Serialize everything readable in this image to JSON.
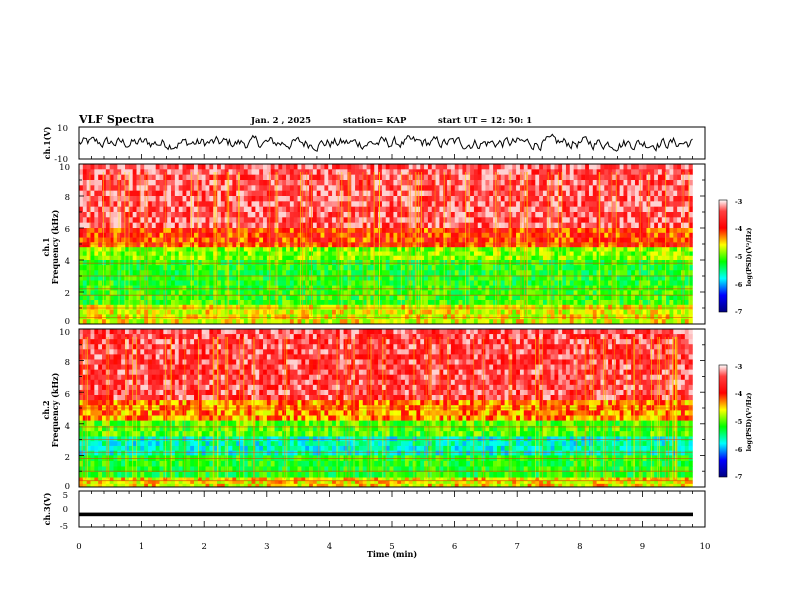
{
  "header": {
    "title": "VLF Spectra",
    "date": "Jan. 2 , 2025",
    "station": "station= KAP",
    "start_time": "start UT = 12: 50: 1"
  },
  "chart_data": [
    {
      "type": "line",
      "id": "ch1-waveform",
      "ylabel": "ch.1(V)",
      "ylim": [
        -10,
        10
      ],
      "yticks": [
        "10",
        "-10"
      ],
      "xlim": [
        0,
        10
      ],
      "note": "dense noisy voltage trace, mostly between -4 and 4 V"
    },
    {
      "type": "heatmap",
      "id": "ch1-spectrogram",
      "ylabel_line1": "ch.1",
      "ylabel_line2": "Frequency (kHz)",
      "ylim": [
        0,
        10
      ],
      "yticks": [
        "0",
        "2",
        "4",
        "6",
        "8",
        "10"
      ],
      "xlim": [
        0,
        9.8
      ],
      "colorbar": {
        "label": "log(PSD)(V²/Hz)",
        "range": [
          -7,
          -3
        ],
        "ticks": [
          "-3",
          "-4",
          "-5",
          "-6",
          "-7"
        ]
      },
      "bands": [
        {
          "f_low": 6.0,
          "f_high": 10.0,
          "log_psd": -3.1
        },
        {
          "f_low": 4.8,
          "f_high": 6.0,
          "log_psd": -3.7
        },
        {
          "f_low": 4.0,
          "f_high": 4.8,
          "log_psd": -4.6
        },
        {
          "f_low": 2.4,
          "f_high": 4.0,
          "log_psd": -5.0
        },
        {
          "f_low": 1.2,
          "f_high": 2.4,
          "log_psd": -4.9
        },
        {
          "f_low": 0.0,
          "f_high": 1.2,
          "log_psd": -4.3
        }
      ]
    },
    {
      "type": "heatmap",
      "id": "ch2-spectrogram",
      "ylabel_line1": "ch.2",
      "ylabel_line2": "Frequency (kHz)",
      "ylim": [
        0,
        10
      ],
      "yticks": [
        "0",
        "2",
        "4",
        "6",
        "8",
        "10"
      ],
      "xlim": [
        0,
        9.8
      ],
      "colorbar": {
        "label": "log(PSD)(V²/Hz)",
        "range": [
          -7,
          -3
        ],
        "ticks": [
          "-3",
          "-4",
          "-5",
          "-6",
          "-7"
        ]
      },
      "bands": [
        {
          "f_low": 5.5,
          "f_high": 10.0,
          "log_psd": -3.2
        },
        {
          "f_low": 4.2,
          "f_high": 5.5,
          "log_psd": -3.9
        },
        {
          "f_low": 3.2,
          "f_high": 4.2,
          "log_psd": -4.8
        },
        {
          "f_low": 2.0,
          "f_high": 3.2,
          "log_psd": -5.6
        },
        {
          "f_low": 0.6,
          "f_high": 2.0,
          "log_psd": -5.0
        },
        {
          "f_low": 0.0,
          "f_high": 0.6,
          "log_psd": -4.2
        }
      ]
    },
    {
      "type": "line",
      "id": "ch3-waveform",
      "ylabel": "ch.3(V)",
      "ylim": [
        -5,
        5
      ],
      "yticks": [
        "5",
        "0",
        "-5"
      ],
      "xlim": [
        0,
        10
      ],
      "xlabel": "Time (min)",
      "xticks": [
        "0",
        "1",
        "2",
        "3",
        "4",
        "5",
        "6",
        "7",
        "8",
        "9",
        "10"
      ],
      "note": "nearly constant level around -1.5 V"
    }
  ],
  "colors": {
    "psd_-3": "#ff0000",
    "psd_-4": "#ffff00",
    "psd_-5": "#00ff00",
    "psd_-5.8": "#00ffff",
    "psd_-6.5": "#0000ff",
    "psd_-7": "#000080"
  }
}
